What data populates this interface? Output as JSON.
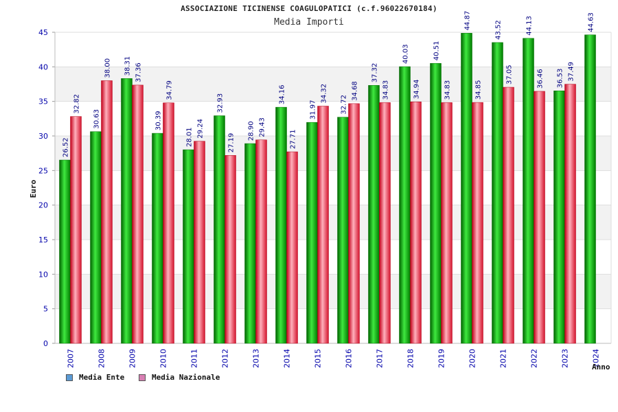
{
  "chart_data": {
    "type": "bar",
    "title": "ASSOCIAZIONE TICINENSE COAGULOPATICI (c.f.96022670184)",
    "subtitle": "Media Importi",
    "ylabel": "Euro",
    "xlabel": "Anno",
    "ylim": [
      0,
      45
    ],
    "yticks": [
      0,
      5,
      10,
      15,
      20,
      25,
      30,
      35,
      40,
      45
    ],
    "categories": [
      "2007",
      "2008",
      "2009",
      "2010",
      "2011",
      "2012",
      "2013",
      "2014",
      "2015",
      "2016",
      "2017",
      "2018",
      "2019",
      "2020",
      "2021",
      "2022",
      "2023",
      "2024"
    ],
    "series": [
      {
        "name": "Media Ente",
        "values": [
          26.52,
          30.63,
          38.31,
          30.39,
          28.01,
          32.93,
          28.9,
          34.16,
          31.97,
          32.72,
          37.32,
          40.03,
          40.51,
          44.87,
          43.52,
          44.13,
          36.53,
          44.63
        ]
      },
      {
        "name": "Media Nazionale",
        "values": [
          32.82,
          38.0,
          37.36,
          34.79,
          29.24,
          27.19,
          29.43,
          27.71,
          34.32,
          34.68,
          34.83,
          34.94,
          34.83,
          34.85,
          37.05,
          36.46,
          37.49,
          null
        ]
      }
    ],
    "grid": true,
    "legend_position": "bottom-left"
  },
  "colors": {
    "ente_bar": "#00a800",
    "nazionale_bar": "#e8283c",
    "ente_legend": "#5b9bd5",
    "nazionale_legend": "#d87fb3",
    "band": "#f2f2f2",
    "tick_text": "#0000aa",
    "label_text": "#000080"
  }
}
